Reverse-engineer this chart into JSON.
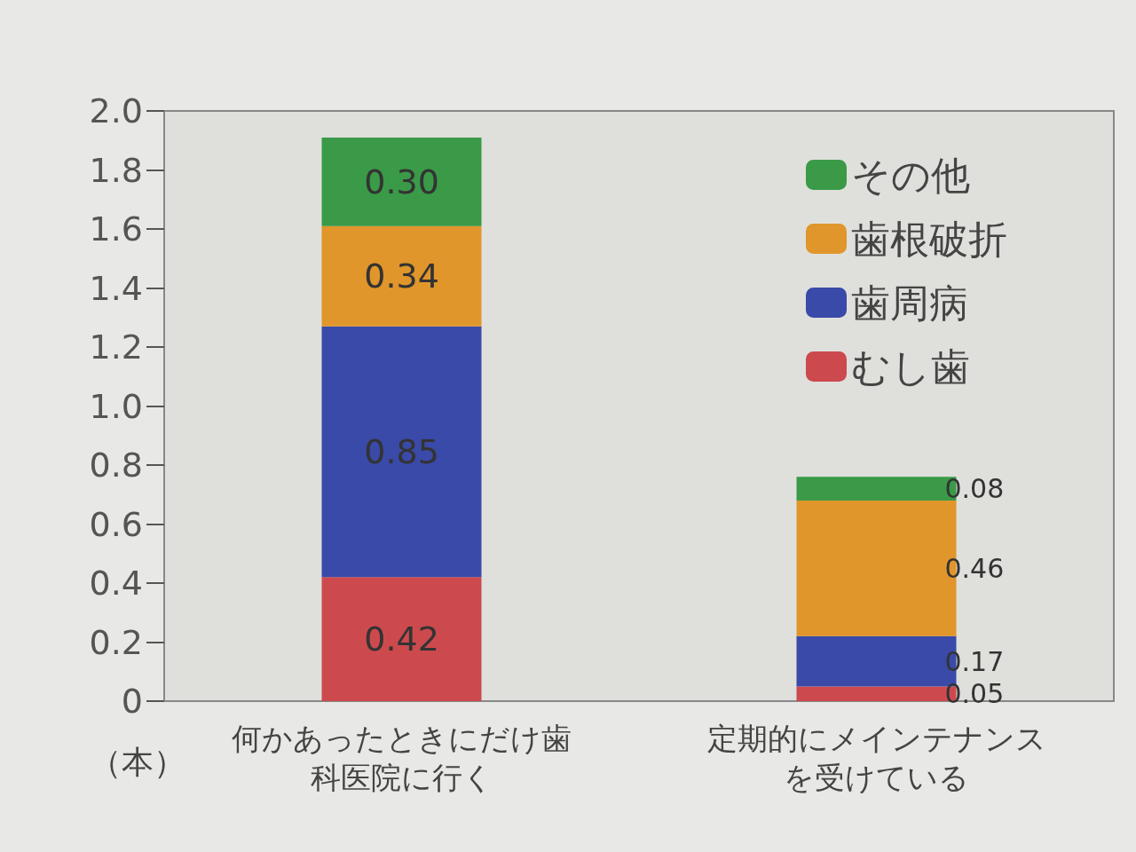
{
  "chart_data": {
    "type": "bar",
    "stacked": true,
    "ylabel": "（本）",
    "categories": [
      "何かあったときにだけ歯科医院に行く",
      "定期的にメインテナンスを受けている"
    ],
    "series": [
      {
        "name": "むし歯",
        "color": "#cc4a4e",
        "values": [
          0.42,
          0.05
        ],
        "value_labels": [
          "0.42",
          "0.05"
        ]
      },
      {
        "name": "歯周病",
        "color": "#3a4aa8",
        "values": [
          0.85,
          0.17
        ],
        "value_labels": [
          "0.85",
          "0.17"
        ]
      },
      {
        "name": "歯根破折",
        "color": "#e0962a",
        "values": [
          0.34,
          0.46
        ],
        "value_labels": [
          "0.34",
          "0.46"
        ]
      },
      {
        "name": "その他",
        "color": "#3a9a48",
        "values": [
          0.3,
          0.08
        ],
        "value_labels": [
          "0.30",
          "0.08"
        ]
      }
    ],
    "ylim": [
      0,
      2.0
    ],
    "yticks": [
      0,
      0.2,
      0.4,
      0.6,
      0.8,
      {
        "value": 1.0,
        "label": "1.0"
      },
      1.2,
      1.4,
      1.6,
      1.8,
      {
        "value": 2.0,
        "label": "2.0"
      }
    ],
    "grid": false,
    "legend": "top right"
  }
}
